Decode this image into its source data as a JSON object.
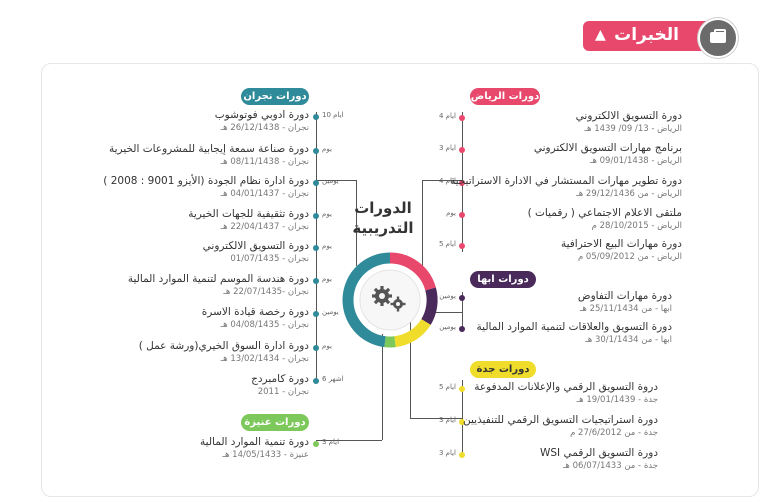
{
  "header": {
    "title": "الخبرات",
    "toggle": "▲",
    "icon": "briefcase-icon",
    "color": "#e8486b"
  },
  "center": {
    "line1": "الدورات",
    "line2": "التدريبية",
    "icon": "gears-icon"
  },
  "colors": {
    "najran": "#2f8a9a",
    "riyadh": "#e8486b",
    "abha": "#4a2a5a",
    "jeddah": "#f0dc2a",
    "unaizah": "#7cc85a"
  },
  "groups": {
    "najran": {
      "label": "دورات نجران"
    },
    "riyadh": {
      "label": "دورات الرياض"
    },
    "abha": {
      "label": "دورات ابها"
    },
    "jeddah": {
      "label": "دورات جدة"
    },
    "unaizah": {
      "label": "دورات عنيزة"
    }
  },
  "najran_items": [
    {
      "title": "دورة ادوبي فوتوشوب",
      "sub": "نجران - 26/12/1438 هـ",
      "dur": "10 ايام"
    },
    {
      "title": "دورة صناعة سمعة إيجابية للمشروعات الخيرية",
      "sub": "نجران - 08/11/1438 هـ",
      "dur": "يوم"
    },
    {
      "title": "دورة ادارة نظام الجودة (الأيزو 9001 : 2008 )",
      "sub": "نجران - 04/01/1437 هـ",
      "dur": "يومين"
    },
    {
      "title": "دورة تثقيفية للجهات الخيرية",
      "sub": "نجران - 22/04/1437 هـ",
      "dur": "يوم"
    },
    {
      "title": "دورة التسويق الالكتروني",
      "sub": "نجران - 01/07/1435",
      "dur": "يوم"
    },
    {
      "title": "دورة هندسة الموسم لتنمية الموارد المالية",
      "sub": "نجران -22/07/1435 هـ",
      "dur": "يوم"
    },
    {
      "title": "دورة رخصة قيادة الاسرة",
      "sub": "نجران - 04/08/1435 هـ",
      "dur": "يومين"
    },
    {
      "title": "دورة ادارة السوق الخيري(ورشة عمل )",
      "sub": "نجران - 13/02/1434 هـ",
      "dur": "يوم"
    },
    {
      "title": "دورة كامبردج",
      "sub": "نجران - 2011",
      "dur": "6 اشهر"
    }
  ],
  "riyadh_items": [
    {
      "title": "دورة التسويق الالكتروني",
      "sub": "الرياض - 13/ 09/ 1439 هـ",
      "dur": "4 ايام"
    },
    {
      "title": "برنامج مهارات التسويق الالكتروني",
      "sub": "الرياض - 09/01/1438 هـ",
      "dur": "3 ايام"
    },
    {
      "title": "دورة تطوير مهارات المستشار في الادارة الاستراتيجية",
      "sub": "الرياض - من 29/12/1436 هـ",
      "dur": "4 ايام"
    },
    {
      "title": "ملتقى الاعلام الاجتماعي ( رقميات )",
      "sub": "الرياض - 28/10/2015 م",
      "dur": "يوم"
    },
    {
      "title": "دورة مهارات البيع الاحترافية",
      "sub": "الرياض - من 05/09/2012 م",
      "dur": "5 ايام"
    }
  ],
  "abha_items": [
    {
      "title": "دورة مهارات التفاوض",
      "sub": "ابها - من 25/11/1434 هـ",
      "dur": "يومين"
    },
    {
      "title": "دورة التسويق والعلاقات لتنمية الموارد المالية",
      "sub": "ابها - من 30/1/1434 هـ",
      "dur": "يومين"
    }
  ],
  "jeddah_items": [
    {
      "title": "دروة التسويق الرقمي والإعلانات المدفوعة",
      "sub": "جدة - 19/01/1439 هـ",
      "dur": "5 ايام"
    },
    {
      "title": "دورة استراتيجيات التسويق الرقمي للتنفيذيين",
      "sub": "جدة - من 27/6/2012 م",
      "dur": "3 ايام"
    },
    {
      "title": "دورة التسويق الرقمي WSI",
      "sub": "جدة - من 06/07/1433 هـ",
      "dur": "3 ايام"
    }
  ],
  "unaizah_items": [
    {
      "title": "دورة تنمية الموارد المالية",
      "sub": "عنيزة - 14/05/1433 هـ",
      "dur": "3 ايام"
    }
  ]
}
